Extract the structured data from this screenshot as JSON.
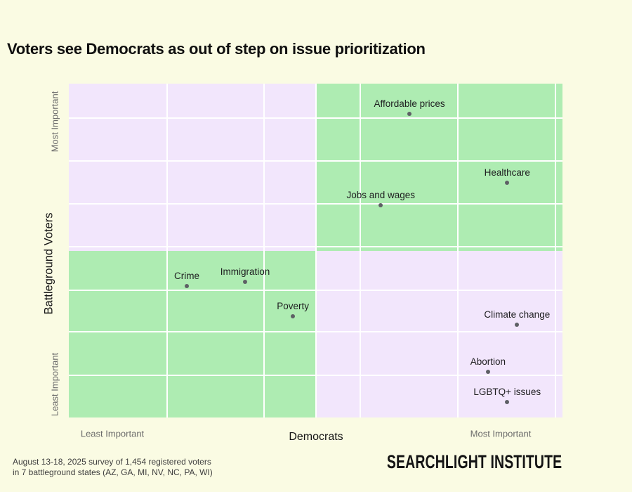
{
  "title": "Voters see Democrats as out of step on issue prioritization",
  "colors": {
    "background": "#fafbe3",
    "agree_green": "#aeecb2",
    "disagree_lavender": "#f2e6fc",
    "gridline": "#ffffff",
    "dot": "#5e6065",
    "point_label": "#1d1d1f",
    "muted_axis": "#6a6a6a",
    "text": "#141414"
  },
  "chart_data": {
    "type": "scatter",
    "title": "Voters see Democrats as out of step on issue prioritization",
    "xlabel": "Democrats",
    "ylabel": "Battleground Voters",
    "x_axis_ticks": {
      "left": "Least Important",
      "right": "Most Important"
    },
    "y_axis_ticks": {
      "top": "Most Important",
      "bottom": "Least Important"
    },
    "axis_range_note": "axes unlabeled numerically; coordinates normalized 0-1, y up",
    "legend": "none",
    "grid": {
      "v": [
        0.199,
        0.395,
        0.59,
        0.788,
        0.986
      ],
      "center_v": 0.5,
      "h": [
        0.103,
        0.232,
        0.36,
        0.488,
        0.619,
        0.743,
        0.874
      ]
    },
    "quadrant_colors": {
      "top_left": "#f2e6fc",
      "top_right": "#aeecb2",
      "bottom_left": "#aeecb2",
      "bottom_right": "#f2e6fc"
    },
    "points": [
      {
        "label": "Affordable prices",
        "x": 0.69,
        "y": 0.909
      },
      {
        "label": "Healthcare",
        "x": 0.888,
        "y": 0.703
      },
      {
        "label": "Jobs and wages",
        "x": 0.632,
        "y": 0.636
      },
      {
        "label": "Crime",
        "x": 0.239,
        "y": 0.394
      },
      {
        "label": "Immigration",
        "x": 0.357,
        "y": 0.406
      },
      {
        "label": "Poverty",
        "x": 0.454,
        "y": 0.303
      },
      {
        "label": "Climate change",
        "x": 0.908,
        "y": 0.278
      },
      {
        "label": "Abortion",
        "x": 0.849,
        "y": 0.137
      },
      {
        "label": "LGBTQ+ issues",
        "x": 0.888,
        "y": 0.046
      }
    ]
  },
  "footer": {
    "line1": "August 13-18, 2025 survey of 1,454 registered voters",
    "line2": "in 7 battleground states (AZ, GA, MI, NV, NC, PA, WI)"
  },
  "branding": "SEARCHLIGHT INSTITUTE"
}
